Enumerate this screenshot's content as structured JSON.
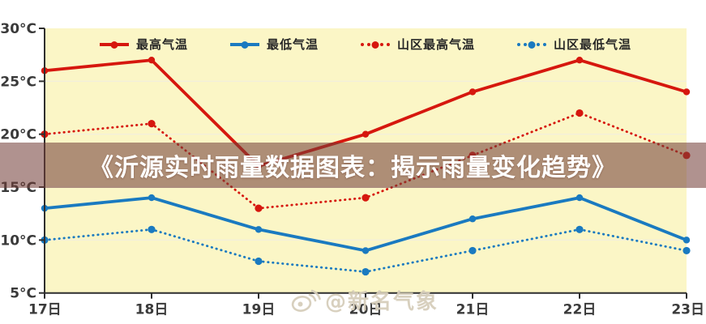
{
  "overlay": {
    "banner_text": "《沂源实时雨量数据图表：揭示雨量变化趋势》",
    "watermark_text": "@新名气象",
    "watermark_icon": "weibo-logo-icon"
  },
  "colors": {
    "red_series": "#d6170e",
    "blue_series": "#1a7ac0",
    "plot_background": "#fbf6c6",
    "grid_line": "#f3efda",
    "axis_line": "#2f2f2f",
    "tick_label": "#3a3a3a",
    "banner_background": "rgba(115,60,55,0.56)",
    "banner_text_color": "#ffffff",
    "watermark_color": "rgba(214,205,186,0.95)"
  },
  "chart_data": {
    "type": "line",
    "categories": [
      "17日",
      "18日",
      "19日",
      "20日",
      "21日",
      "22日",
      "23日"
    ],
    "series": [
      {
        "name": "最高气温",
        "style": "solid",
        "color": "#d6170e",
        "values": [
          26,
          27,
          17,
          20,
          24,
          27,
          24
        ]
      },
      {
        "name": "最低气温",
        "style": "solid",
        "color": "#1a7ac0",
        "values": [
          13,
          14,
          11,
          9,
          12,
          14,
          10
        ]
      },
      {
        "name": "山区最高气温",
        "style": "dotted",
        "color": "#d6170e",
        "values": [
          20,
          21,
          13,
          14,
          18,
          22,
          18
        ]
      },
      {
        "name": "山区最低气温",
        "style": "dotted",
        "color": "#1a7ac0",
        "values": [
          10,
          11,
          8,
          7,
          9,
          11,
          9
        ]
      }
    ],
    "y_ticks": [
      {
        "label": "30°C",
        "value": 30
      },
      {
        "label": "25°C",
        "value": 25
      },
      {
        "label": "20°C",
        "value": 20
      },
      {
        "label": "15°C",
        "value": 15
      },
      {
        "label": "10°C",
        "value": 10
      },
      {
        "label": "5°C",
        "value": 5
      }
    ],
    "ylim": [
      5,
      30
    ],
    "xlabel": "",
    "ylabel": "",
    "grid": true,
    "legend_position": "top-inside"
  }
}
